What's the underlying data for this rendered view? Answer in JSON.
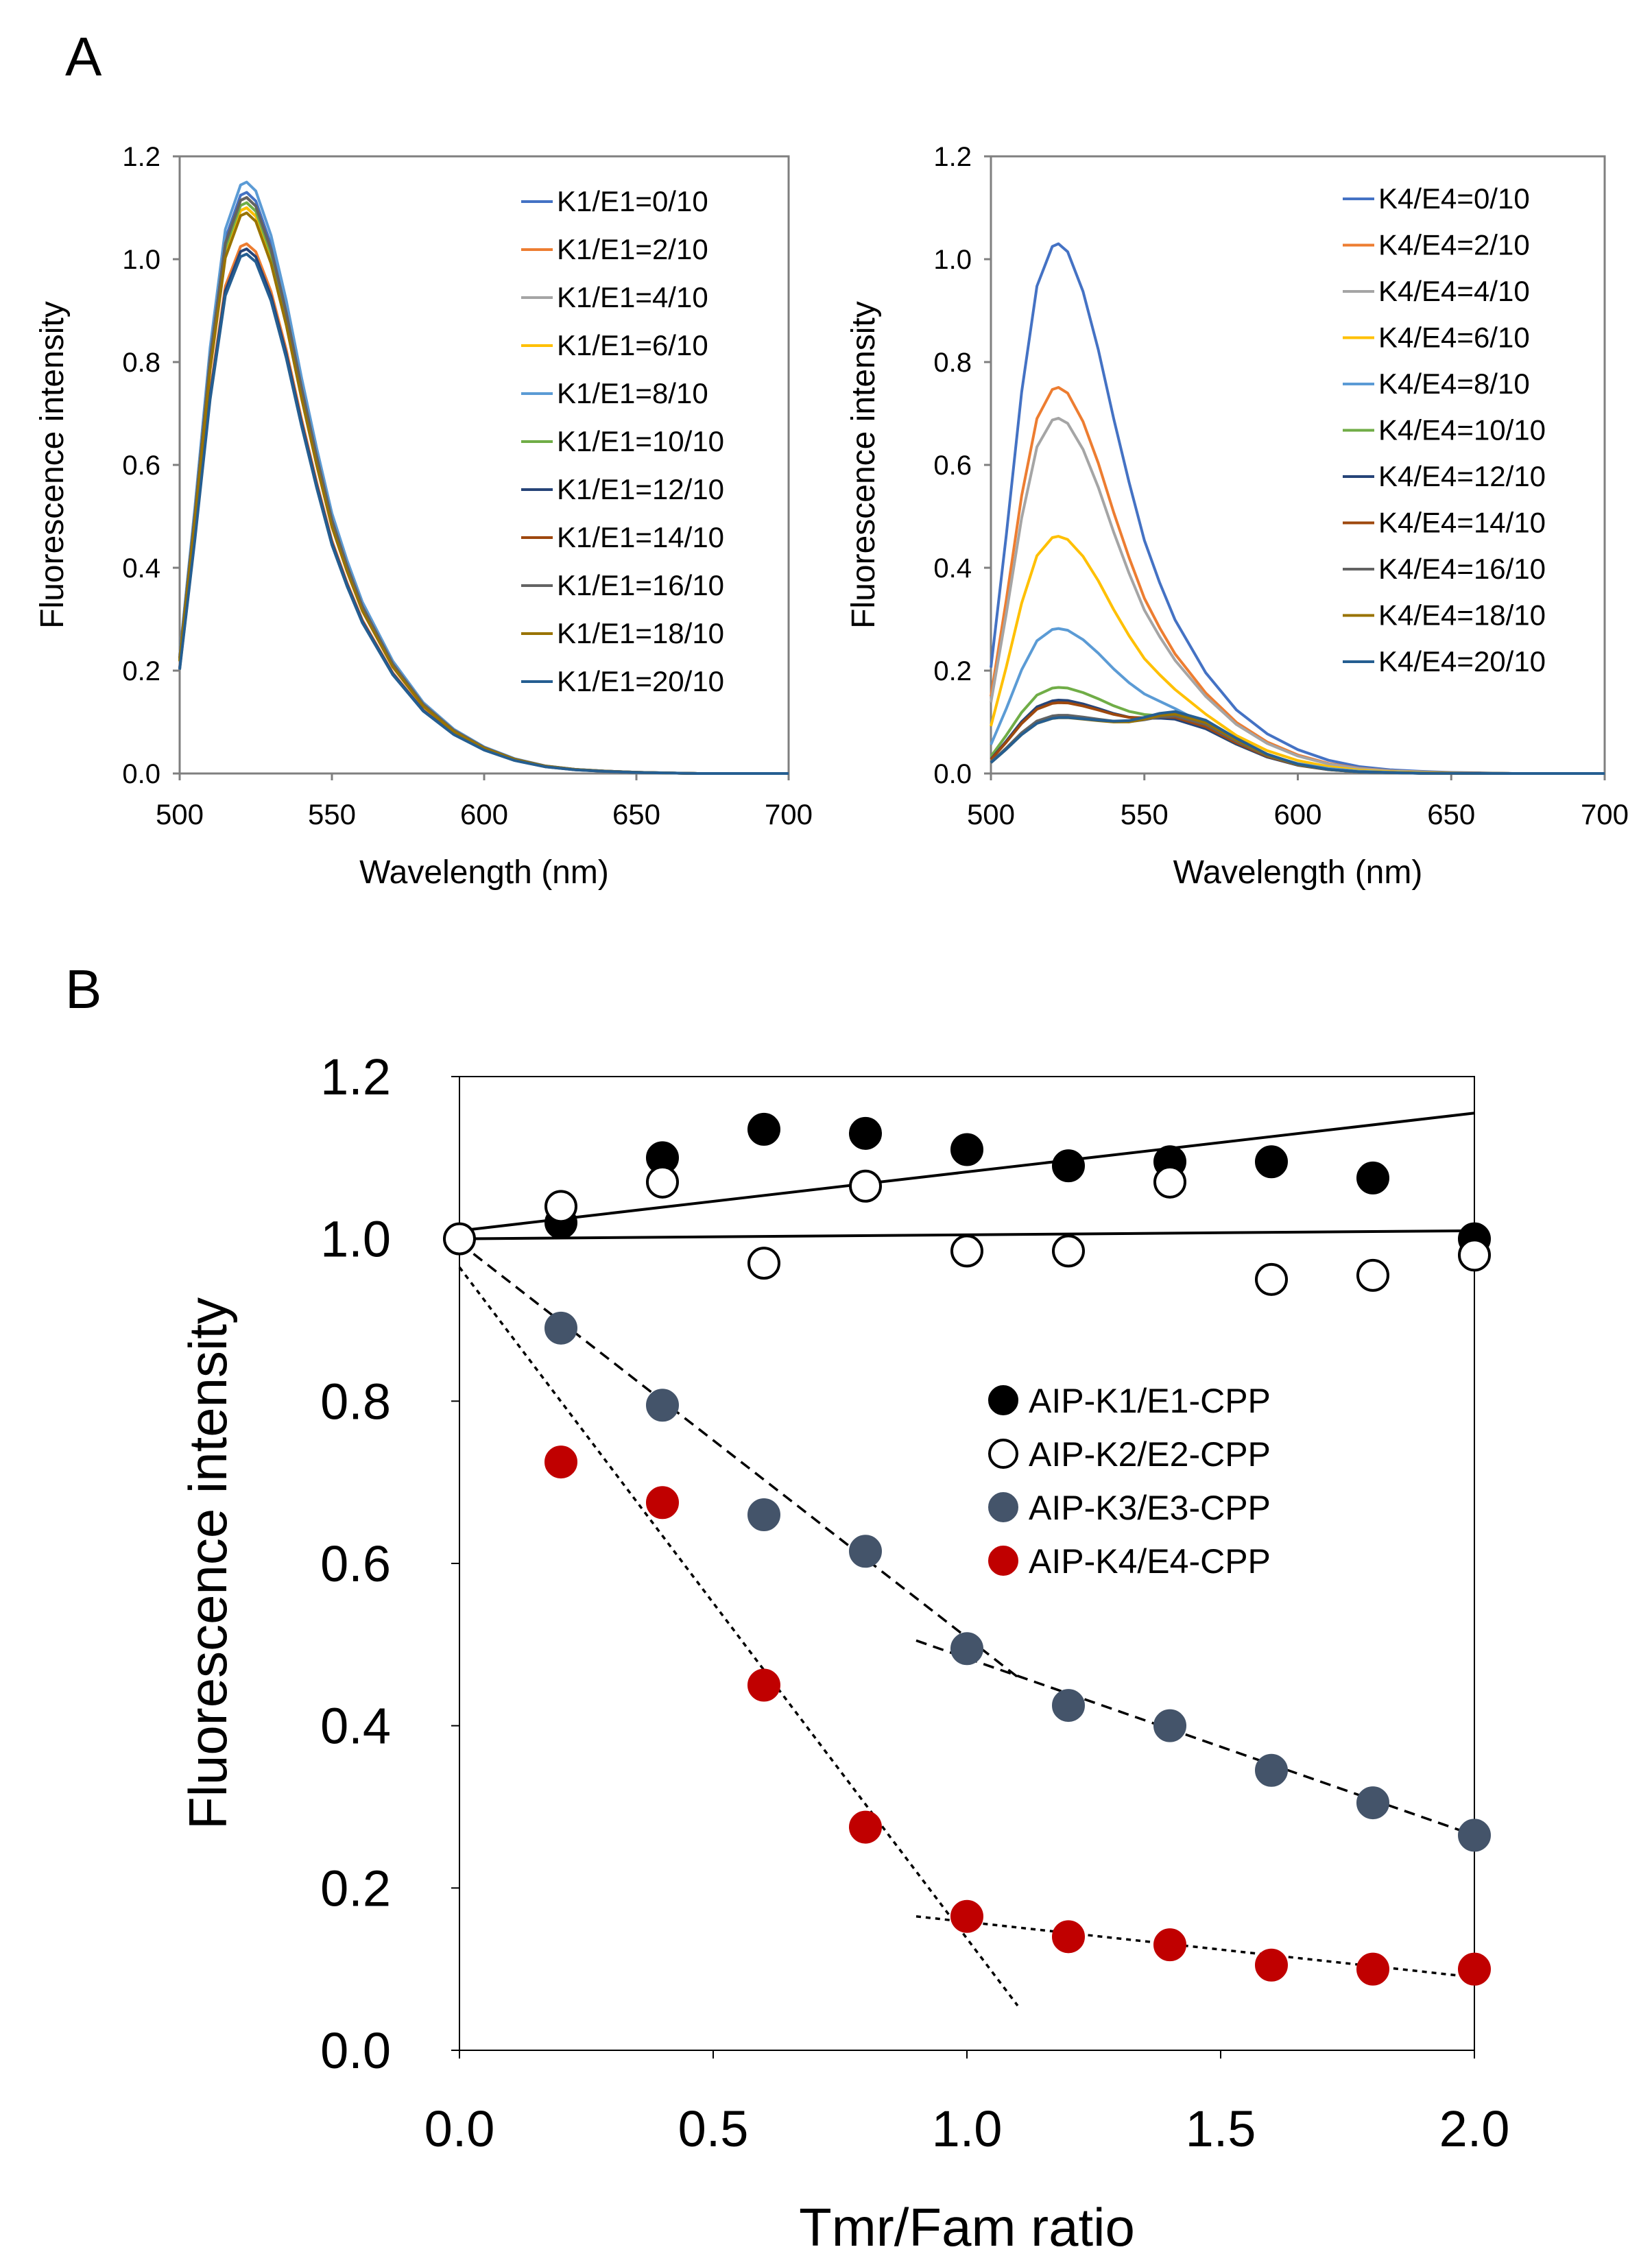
{
  "figure": {
    "panel_a_label": "A",
    "panel_b_label": "B"
  },
  "chart_data": [
    {
      "type": "line",
      "panel": "A-left",
      "xlabel": "Wavelength (nm)",
      "ylabel": "Fluorescence intensity",
      "xlim": [
        500,
        700
      ],
      "ylim": [
        0.0,
        1.2
      ],
      "xticks": [
        500,
        550,
        600,
        650,
        700
      ],
      "yticks": [
        0.0,
        0.2,
        0.4,
        0.6,
        0.8,
        1.0,
        1.2
      ],
      "x": [
        500,
        505,
        510,
        515,
        520,
        522,
        525,
        530,
        535,
        540,
        545,
        550,
        555,
        560,
        570,
        580,
        590,
        600,
        610,
        620,
        630,
        640,
        650,
        660,
        670,
        680,
        700
      ],
      "shape": [
        0.2,
        0.45,
        0.72,
        0.92,
        0.995,
        1.0,
        0.985,
        0.91,
        0.8,
        0.67,
        0.55,
        0.44,
        0.36,
        0.29,
        0.19,
        0.12,
        0.075,
        0.045,
        0.025,
        0.013,
        0.007,
        0.004,
        0.002,
        0.001,
        0.0,
        0.0,
        0.0
      ],
      "series": [
        {
          "name": "K1/E1=0/10",
          "color": "#4472C4",
          "peak": 1.13
        },
        {
          "name": "K1/E1=2/10",
          "color": "#ED7D31",
          "peak": 1.03
        },
        {
          "name": "K1/E1=4/10",
          "color": "#A5A5A5",
          "peak": 1.1
        },
        {
          "name": "K1/E1=6/10",
          "color": "#FFC000",
          "peak": 1.1
        },
        {
          "name": "K1/E1=8/10",
          "color": "#5B9BD5",
          "peak": 1.15
        },
        {
          "name": "K1/E1=10/10",
          "color": "#70AD47",
          "peak": 1.11
        },
        {
          "name": "K1/E1=12/10",
          "color": "#264478",
          "peak": 1.02
        },
        {
          "name": "K1/E1=14/10",
          "color": "#9E480E",
          "peak": 1.12
        },
        {
          "name": "K1/E1=16/10",
          "color": "#636363",
          "peak": 1.12
        },
        {
          "name": "K1/E1=18/10",
          "color": "#997300",
          "peak": 1.09
        },
        {
          "name": "K1/E1=20/10",
          "color": "#255E91",
          "peak": 1.01
        }
      ]
    },
    {
      "type": "line",
      "panel": "A-right",
      "xlabel": "Wavelength (nm)",
      "ylabel": "Fluorescence intensity",
      "xlim": [
        500,
        700
      ],
      "ylim": [
        0.0,
        1.2
      ],
      "xticks": [
        500,
        550,
        600,
        650,
        700
      ],
      "yticks": [
        0.0,
        0.2,
        0.4,
        0.6,
        0.8,
        1.0,
        1.2
      ],
      "x": [
        500,
        505,
        510,
        515,
        520,
        522,
        525,
        530,
        535,
        540,
        545,
        550,
        555,
        560,
        570,
        580,
        590,
        600,
        610,
        620,
        630,
        640,
        650,
        660,
        670,
        680,
        700
      ],
      "shape": [
        0.2,
        0.45,
        0.72,
        0.92,
        0.995,
        1.0,
        0.985,
        0.91,
        0.8,
        0.67,
        0.55,
        0.44,
        0.36,
        0.29,
        0.19,
        0.12,
        0.075,
        0.045,
        0.025,
        0.013,
        0.007,
        0.004,
        0.002,
        0.001,
        0.0,
        0.0,
        0.0
      ],
      "acceptor_shape": [
        0,
        0,
        0,
        0.01,
        0.03,
        0.04,
        0.06,
        0.12,
        0.22,
        0.35,
        0.5,
        0.7,
        0.88,
        1.0,
        0.93,
        0.62,
        0.33,
        0.15,
        0.06,
        0.02,
        0.01,
        0,
        0,
        0,
        0,
        0,
        0
      ],
      "series": [
        {
          "name": "K4/E4=0/10",
          "color": "#4472C4",
          "peak": 1.03,
          "acceptor": 0.0
        },
        {
          "name": "K4/E4=2/10",
          "color": "#ED7D31",
          "peak": 0.75,
          "acceptor": 0.015
        },
        {
          "name": "K4/E4=4/10",
          "color": "#A5A5A5",
          "peak": 0.69,
          "acceptor": 0.02
        },
        {
          "name": "K4/E4=6/10",
          "color": "#FFC000",
          "peak": 0.46,
          "acceptor": 0.03
        },
        {
          "name": "K4/E4=8/10",
          "color": "#5B9BD5",
          "peak": 0.28,
          "acceptor": 0.045
        },
        {
          "name": "K4/E4=10/10",
          "color": "#70AD47",
          "peak": 0.165,
          "acceptor": 0.06
        },
        {
          "name": "K4/E4=12/10",
          "color": "#264478",
          "peak": 0.14,
          "acceptor": 0.065
        },
        {
          "name": "K4/E4=14/10",
          "color": "#9E480E",
          "peak": 0.135,
          "acceptor": 0.07
        },
        {
          "name": "K4/E4=16/10",
          "color": "#636363",
          "peak": 0.11,
          "acceptor": 0.08
        },
        {
          "name": "K4/E4=18/10",
          "color": "#997300",
          "peak": 0.105,
          "acceptor": 0.085
        },
        {
          "name": "K4/E4=20/10",
          "color": "#255E91",
          "peak": 0.105,
          "acceptor": 0.09
        }
      ]
    },
    {
      "type": "scatter",
      "panel": "B",
      "xlabel": "Tmr/Fam ratio",
      "ylabel": "Fluorescence intensity",
      "xlim": [
        0.0,
        2.0
      ],
      "ylim": [
        0.0,
        1.2
      ],
      "xticks": [
        0.0,
        0.5,
        1.0,
        1.5,
        2.0
      ],
      "yticks": [
        0.0,
        0.2,
        0.4,
        0.6,
        0.8,
        1.0,
        1.2
      ],
      "series": [
        {
          "name": "AIP-K1/E1-CPP",
          "fill": "#000000",
          "stroke": "#000000",
          "x": [
            0.2,
            0.4,
            0.6,
            0.8,
            1.0,
            1.2,
            1.4,
            1.6,
            1.8,
            2.0
          ],
          "y": [
            1.02,
            1.1,
            1.135,
            1.13,
            1.11,
            1.09,
            1.095,
            1.095,
            1.075,
            1.0
          ]
        },
        {
          "name": "AIP-K2/E2-CPP",
          "fill": "#ffffff",
          "stroke": "#000000",
          "x": [
            0.0,
            0.2,
            0.4,
            0.6,
            0.8,
            1.0,
            1.2,
            1.4,
            1.6,
            1.8,
            2.0
          ],
          "y": [
            1.0,
            1.04,
            1.07,
            0.97,
            1.065,
            0.985,
            0.985,
            1.07,
            0.95,
            0.955,
            0.98
          ]
        },
        {
          "name": "AIP-K3/E3-CPP",
          "fill": "#44546A",
          "stroke": "#44546A",
          "x": [
            0.2,
            0.4,
            0.6,
            0.8,
            1.0,
            1.2,
            1.4,
            1.6,
            1.8,
            2.0
          ],
          "y": [
            0.89,
            0.795,
            0.66,
            0.615,
            0.495,
            0.425,
            0.4,
            0.345,
            0.305,
            0.265
          ]
        },
        {
          "name": "AIP-K4/E4-CPP",
          "fill": "#C00000",
          "stroke": "#C00000",
          "x": [
            0.2,
            0.4,
            0.6,
            0.8,
            1.0,
            1.2,
            1.4,
            1.6,
            1.8,
            2.0
          ],
          "y": [
            0.725,
            0.675,
            0.45,
            0.275,
            0.165,
            0.14,
            0.13,
            0.105,
            0.1,
            0.1
          ]
        }
      ],
      "fit_lines": [
        {
          "name": "K1 trend",
          "dash": "solid",
          "x": [
            0.0,
            2.0
          ],
          "y": [
            1.01,
            1.155
          ]
        },
        {
          "name": "K2 trend",
          "dash": "solid",
          "x": [
            0.0,
            2.0
          ],
          "y": [
            1.0,
            1.01
          ]
        },
        {
          "name": "K3 fit 1",
          "dash": "dashed",
          "x": [
            0.0,
            1.1
          ],
          "y": [
            0.995,
            0.46
          ]
        },
        {
          "name": "K3 fit 2",
          "dash": "dashed",
          "x": [
            0.9,
            2.0
          ],
          "y": [
            0.505,
            0.265
          ]
        },
        {
          "name": "K4 fit 1",
          "dash": "dotted",
          "x": [
            0.0,
            1.1
          ],
          "y": [
            0.965,
            0.055
          ]
        },
        {
          "name": "K4 fit 2",
          "dash": "dotted",
          "x": [
            0.9,
            2.0
          ],
          "y": [
            0.165,
            0.09
          ]
        }
      ],
      "legend_position": "right-middle"
    }
  ]
}
